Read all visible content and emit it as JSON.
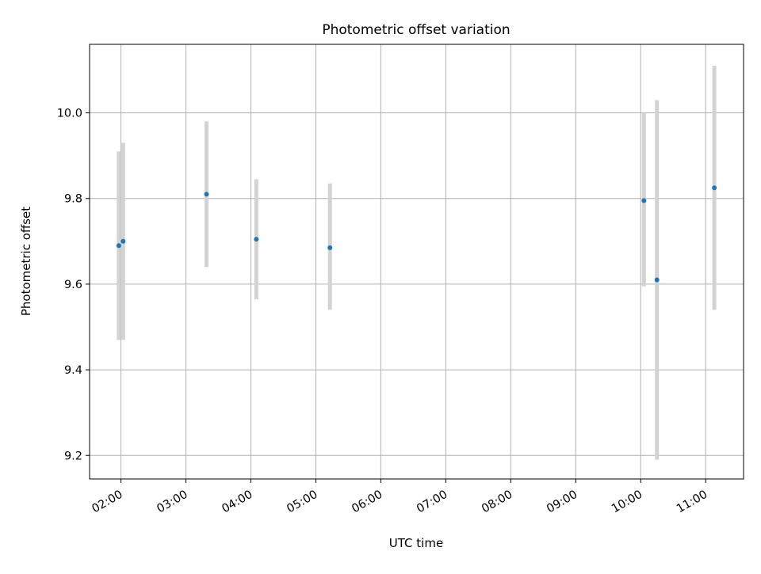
{
  "chart_data": {
    "type": "scatter",
    "title": "Photometric offset variation",
    "xlabel": "UTC time",
    "ylabel": "Photometric offset",
    "x_unit": "UTC time (HH:MM)",
    "xlim": [
      "01:31",
      "11:35"
    ],
    "ylim": [
      9.145,
      10.16
    ],
    "grid": true,
    "x_ticks": [
      "02:00",
      "03:00",
      "04:00",
      "05:00",
      "06:00",
      "07:00",
      "08:00",
      "09:00",
      "10:00",
      "11:00"
    ],
    "y_ticks": [
      "9.2",
      "9.4",
      "9.6",
      "9.8",
      "10.0"
    ],
    "series": [
      {
        "points": [
          {
            "x": "01:58",
            "y": 9.69,
            "y_low": 9.47,
            "y_high": 9.91
          },
          {
            "x": "02:02",
            "y": 9.7,
            "y_low": 9.47,
            "y_high": 9.93
          },
          {
            "x": "03:19",
            "y": 9.81,
            "y_low": 9.64,
            "y_high": 9.98
          },
          {
            "x": "04:05",
            "y": 9.705,
            "y_low": 9.565,
            "y_high": 9.845
          },
          {
            "x": "05:13",
            "y": 9.685,
            "y_low": 9.54,
            "y_high": 9.835
          },
          {
            "x": "10:03",
            "y": 9.795,
            "y_low": 9.595,
            "y_high": 10.0
          },
          {
            "x": "10:15",
            "y": 9.61,
            "y_low": 9.19,
            "y_high": 10.03
          },
          {
            "x": "11:08",
            "y": 9.825,
            "y_low": 9.54,
            "y_high": 10.11
          }
        ]
      }
    ],
    "colors": {
      "marker": "#1f77b4",
      "errorbar": "#d3d3d3",
      "grid": "#b0b0b0",
      "axes": "#000000"
    }
  }
}
